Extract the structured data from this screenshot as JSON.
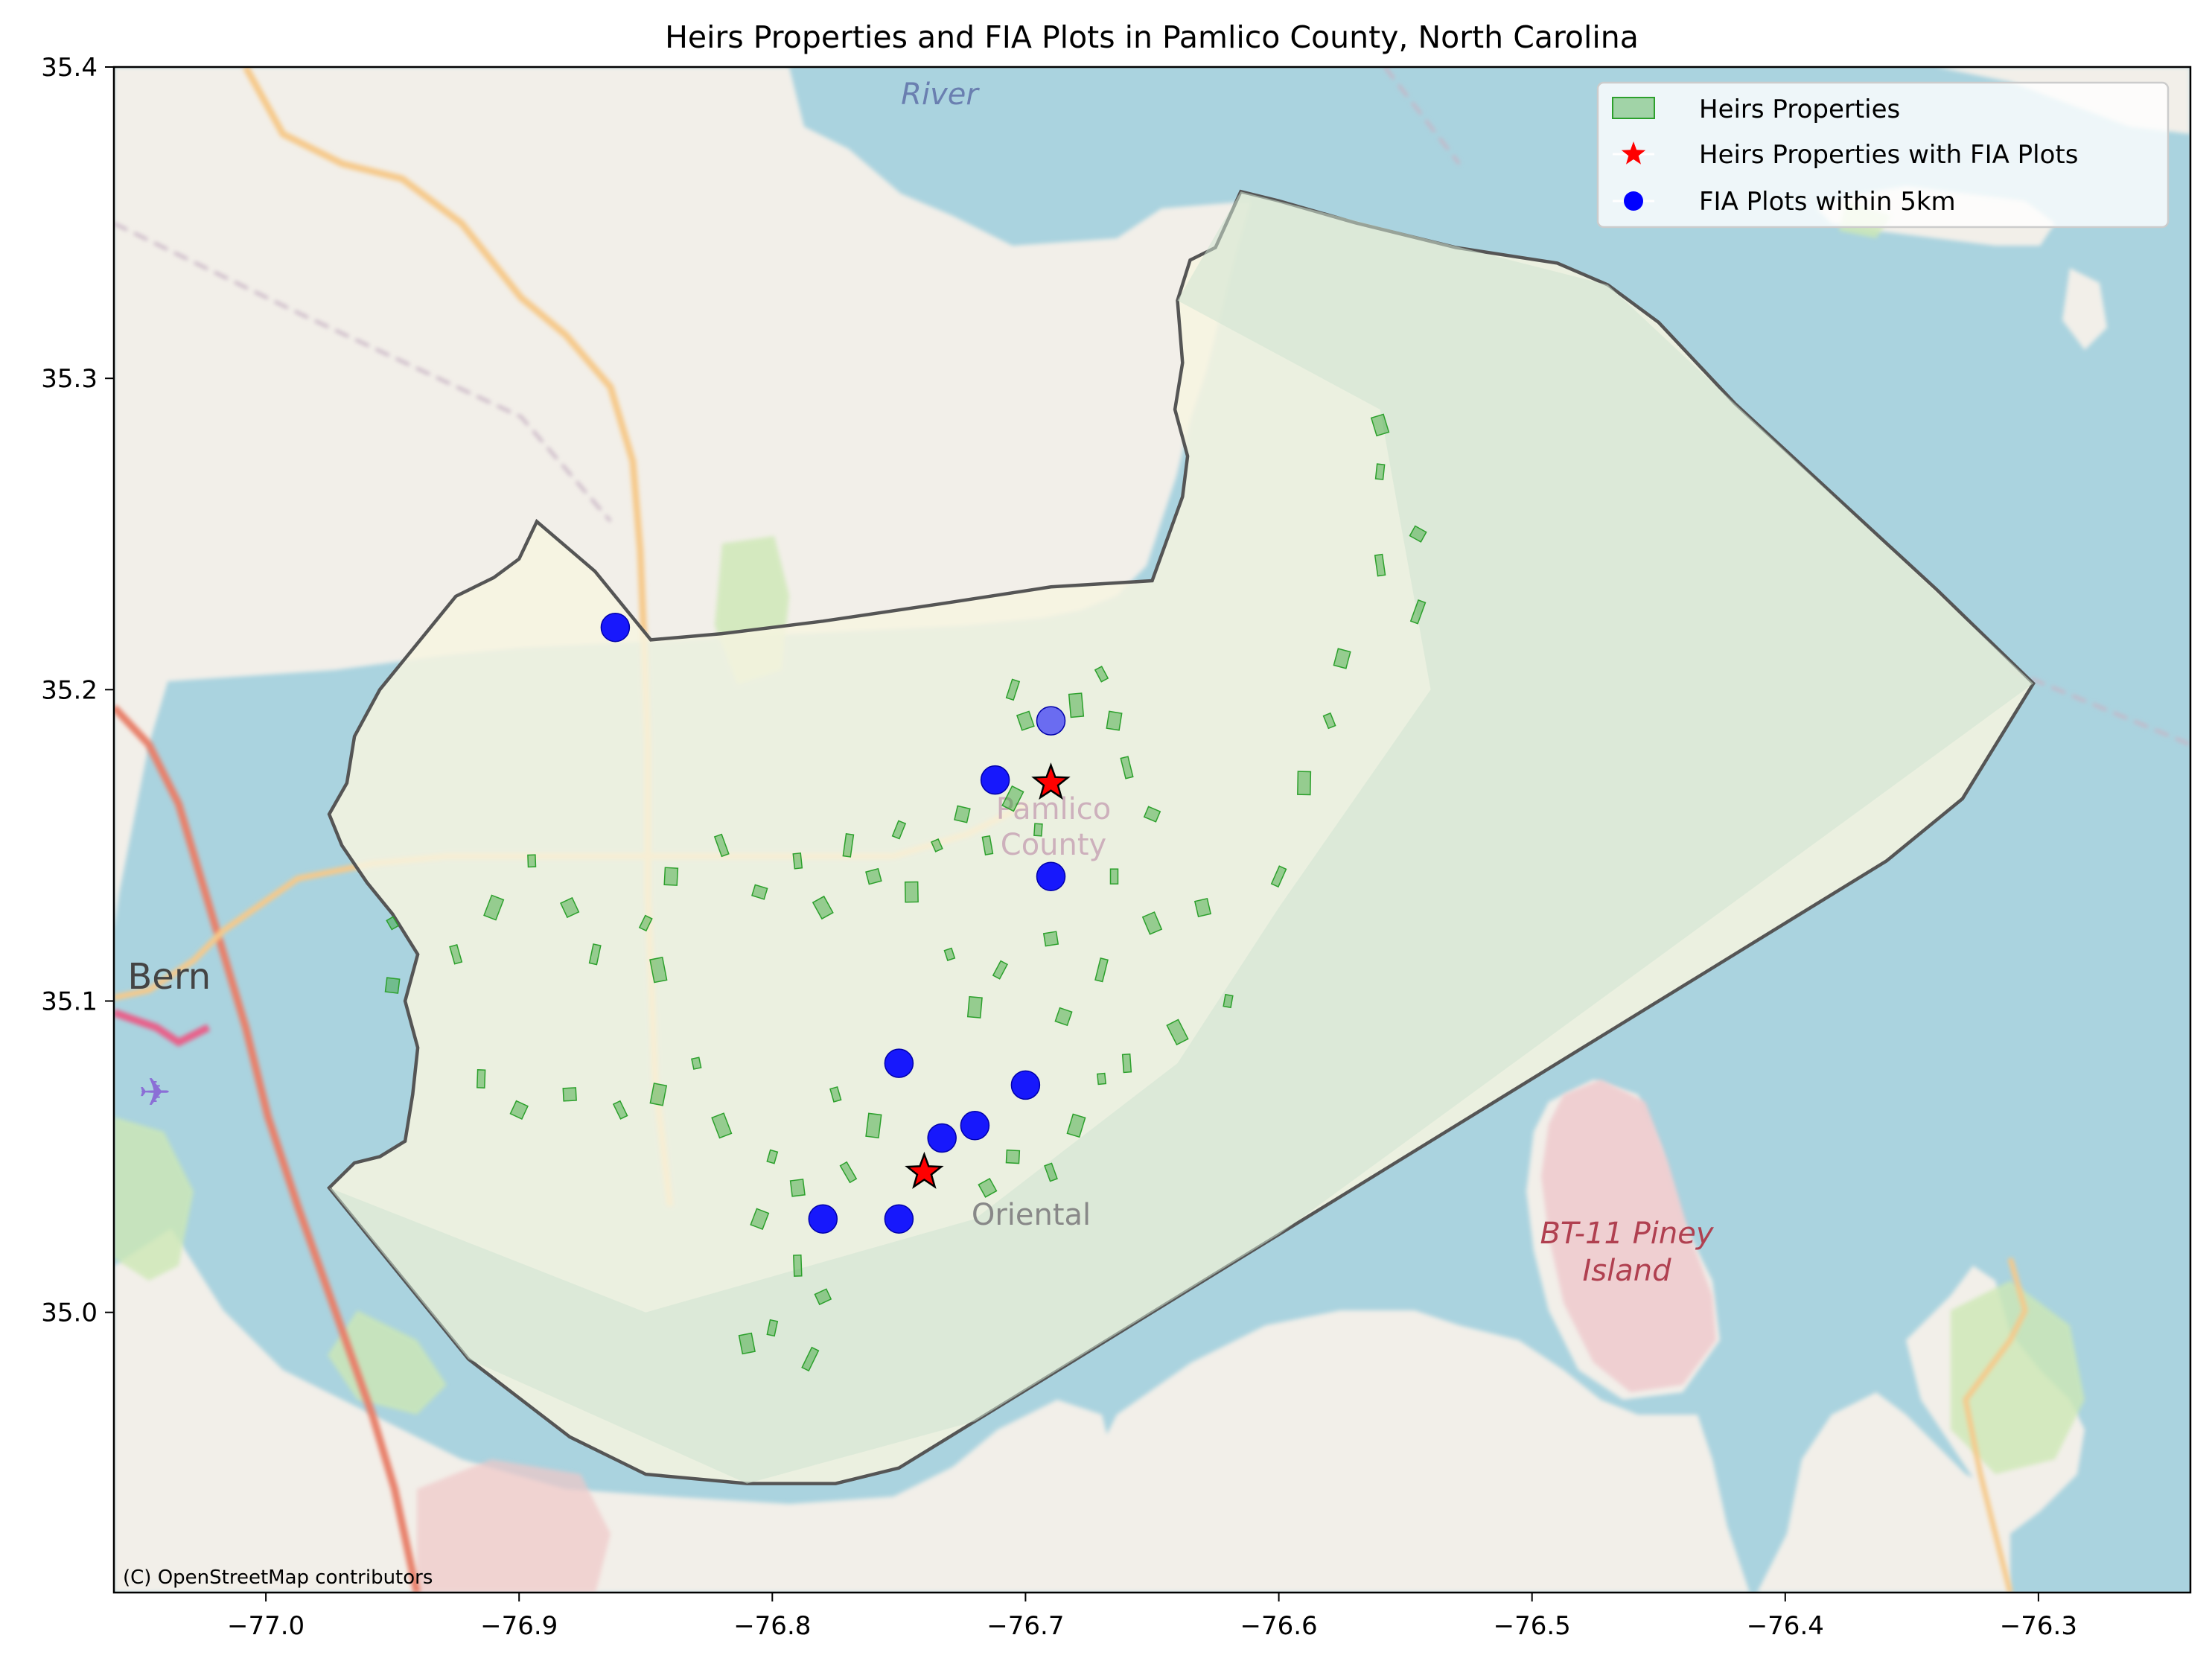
{
  "chart_data": {
    "type": "map",
    "title": "Heirs Properties and FIA Plots in Pamlico County, North Carolina",
    "xlim": [
      -77.06,
      -76.24
    ],
    "ylim": [
      34.91,
      35.4
    ],
    "x_ticks": [
      -77.0,
      -76.9,
      -76.8,
      -76.7,
      -76.6,
      -76.5,
      -76.4,
      -76.3
    ],
    "x_tick_labels": [
      "−77.0",
      "−76.9",
      "−76.8",
      "−76.7",
      "−76.6",
      "−76.5",
      "−76.4",
      "−76.3"
    ],
    "y_ticks": [
      35.0,
      35.1,
      35.2,
      35.3,
      35.4
    ],
    "y_tick_labels": [
      "35.0",
      "35.1",
      "35.2",
      "35.3",
      "35.4"
    ],
    "grid": false,
    "legend_position": "top-right",
    "legend": [
      {
        "label": "Heirs Properties",
        "marker": "patch",
        "color": "#2ca02c"
      },
      {
        "label": "Heirs Properties with FIA Plots",
        "marker": "star",
        "color": "#ff0000"
      },
      {
        "label": "FIA Plots within 5km",
        "marker": "circle",
        "color": "#0000ff"
      }
    ],
    "county_boundary": [
      [
        -76.975,
        35.04
      ],
      [
        -76.965,
        35.03
      ],
      [
        -76.945,
        35.01
      ],
      [
        -76.92,
        34.985
      ],
      [
        -76.88,
        34.96
      ],
      [
        -76.85,
        34.948
      ],
      [
        -76.81,
        34.945
      ],
      [
        -76.775,
        34.945
      ],
      [
        -76.75,
        34.95
      ],
      [
        -76.72,
        34.965
      ],
      [
        -76.68,
        34.985
      ],
      [
        -76.64,
        35.005
      ],
      [
        -76.6,
        35.025
      ],
      [
        -76.56,
        35.045
      ],
      [
        -76.52,
        35.065
      ],
      [
        -76.48,
        35.085
      ],
      [
        -76.44,
        35.105
      ],
      [
        -76.4,
        35.125
      ],
      [
        -76.36,
        35.145
      ],
      [
        -76.33,
        35.165
      ],
      [
        -76.302,
        35.202
      ],
      [
        -76.34,
        35.232
      ],
      [
        -76.38,
        35.262
      ],
      [
        -76.42,
        35.292
      ],
      [
        -76.45,
        35.318
      ],
      [
        -76.47,
        35.33
      ],
      [
        -76.49,
        35.337
      ],
      [
        -76.53,
        35.342
      ],
      [
        -76.57,
        35.35
      ],
      [
        -76.6,
        35.357
      ],
      [
        -76.615,
        35.36
      ],
      [
        -76.625,
        35.342
      ],
      [
        -76.635,
        35.338
      ],
      [
        -76.64,
        35.325
      ],
      [
        -76.638,
        35.305
      ],
      [
        -76.641,
        35.29
      ],
      [
        -76.636,
        35.275
      ],
      [
        -76.638,
        35.262
      ],
      [
        -76.65,
        35.235
      ],
      [
        -76.69,
        35.233
      ],
      [
        -76.73,
        35.228
      ],
      [
        -76.78,
        35.222
      ],
      [
        -76.82,
        35.218
      ],
      [
        -76.848,
        35.216
      ],
      [
        -76.87,
        35.238
      ],
      [
        -76.893,
        35.254
      ],
      [
        -76.9,
        35.242
      ],
      [
        -76.91,
        35.236
      ],
      [
        -76.925,
        35.23
      ],
      [
        -76.935,
        35.22
      ],
      [
        -76.945,
        35.21
      ],
      [
        -76.955,
        35.2
      ],
      [
        -76.965,
        35.185
      ],
      [
        -76.968,
        35.17
      ],
      [
        -76.975,
        35.16
      ],
      [
        -76.97,
        35.15
      ],
      [
        -76.96,
        35.138
      ],
      [
        -76.95,
        35.128
      ],
      [
        -76.94,
        35.115
      ],
      [
        -76.945,
        35.1
      ],
      [
        -76.94,
        35.085
      ],
      [
        -76.942,
        35.07
      ],
      [
        -76.945,
        35.055
      ],
      [
        -76.955,
        35.05
      ],
      [
        -76.965,
        35.048
      ]
    ],
    "heirs_with_fia_plots": [
      {
        "lon": -76.69,
        "lat": 35.17
      },
      {
        "lon": -76.74,
        "lat": 35.045
      }
    ],
    "fia_plots_within_5km": [
      {
        "lon": -76.862,
        "lat": 35.22
      },
      {
        "lon": -76.69,
        "lat": 35.19
      },
      {
        "lon": -76.712,
        "lat": 35.171
      },
      {
        "lon": -76.69,
        "lat": 35.14
      },
      {
        "lon": -76.75,
        "lat": 35.08
      },
      {
        "lon": -76.7,
        "lat": 35.073
      },
      {
        "lon": -76.72,
        "lat": 35.06
      },
      {
        "lon": -76.733,
        "lat": 35.056
      },
      {
        "lon": -76.75,
        "lat": 35.03
      },
      {
        "lon": -76.78,
        "lat": 35.03
      }
    ],
    "heirs_properties": [
      [
        -76.95,
        35.125
      ],
      [
        -76.95,
        35.105
      ],
      [
        -76.925,
        35.115
      ],
      [
        -76.91,
        35.13
      ],
      [
        -76.895,
        35.145
      ],
      [
        -76.88,
        35.13
      ],
      [
        -76.87,
        35.115
      ],
      [
        -76.845,
        35.11
      ],
      [
        -76.85,
        35.125
      ],
      [
        -76.84,
        35.14
      ],
      [
        -76.82,
        35.15
      ],
      [
        -76.805,
        35.135
      ],
      [
        -76.79,
        35.145
      ],
      [
        -76.78,
        35.13
      ],
      [
        -76.77,
        35.15
      ],
      [
        -76.76,
        35.14
      ],
      [
        -76.75,
        35.155
      ],
      [
        -76.745,
        35.135
      ],
      [
        -76.735,
        35.15
      ],
      [
        -76.725,
        35.16
      ],
      [
        -76.715,
        35.15
      ],
      [
        -76.705,
        35.165
      ],
      [
        -76.695,
        35.155
      ],
      [
        -76.7,
        35.19
      ],
      [
        -76.705,
        35.2
      ],
      [
        -76.68,
        35.195
      ],
      [
        -76.67,
        35.205
      ],
      [
        -76.665,
        35.19
      ],
      [
        -76.66,
        35.175
      ],
      [
        -76.65,
        35.16
      ],
      [
        -76.665,
        35.14
      ],
      [
        -76.65,
        35.125
      ],
      [
        -76.67,
        35.11
      ],
      [
        -76.69,
        35.12
      ],
      [
        -76.71,
        35.11
      ],
      [
        -76.72,
        35.098
      ],
      [
        -76.73,
        35.115
      ],
      [
        -76.685,
        35.095
      ],
      [
        -76.66,
        35.08
      ],
      [
        -76.64,
        35.09
      ],
      [
        -76.62,
        35.1
      ],
      [
        -76.63,
        35.13
      ],
      [
        -76.6,
        35.14
      ],
      [
        -76.59,
        35.17
      ],
      [
        -76.58,
        35.19
      ],
      [
        -76.575,
        35.21
      ],
      [
        -76.56,
        35.24
      ],
      [
        -76.545,
        35.25
      ],
      [
        -76.56,
        35.27
      ],
      [
        -76.56,
        35.285
      ],
      [
        -76.545,
        35.225
      ],
      [
        -76.88,
        35.07
      ],
      [
        -76.86,
        35.065
      ],
      [
        -76.845,
        35.07
      ],
      [
        -76.83,
        35.08
      ],
      [
        -76.9,
        35.065
      ],
      [
        -76.915,
        35.075
      ],
      [
        -76.82,
        35.06
      ],
      [
        -76.8,
        35.05
      ],
      [
        -76.79,
        35.04
      ],
      [
        -76.77,
        35.045
      ],
      [
        -76.76,
        35.06
      ],
      [
        -76.775,
        35.07
      ],
      [
        -76.805,
        35.03
      ],
      [
        -76.79,
        35.015
      ],
      [
        -76.78,
        35.005
      ],
      [
        -76.8,
        34.995
      ],
      [
        -76.81,
        34.99
      ],
      [
        -76.785,
        34.985
      ],
      [
        -76.705,
        35.05
      ],
      [
        -76.69,
        35.045
      ],
      [
        -76.68,
        35.06
      ],
      [
        -76.67,
        35.075
      ],
      [
        -76.715,
        35.04
      ]
    ],
    "map_labels": [
      "River",
      "Pamlico County",
      "Oriental",
      "BT-11 Piney Island",
      "w Bern"
    ],
    "attribution": "(C) OpenStreetMap contributors"
  }
}
